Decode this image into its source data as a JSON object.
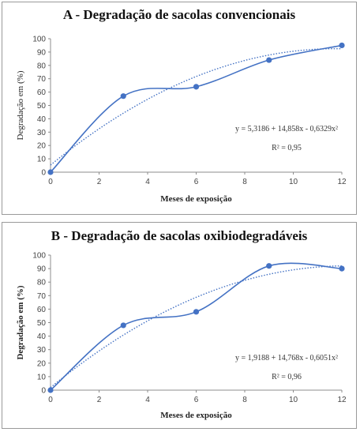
{
  "colors": {
    "series": "#4472c4",
    "grid": "#d9d9d9",
    "axis": "#8c8c8c"
  },
  "chart_data": [
    {
      "type": "line",
      "title": "A - Degradação de sacolas convencionais",
      "xlabel": "Meses de exposição",
      "ylabel": "Degradação em (%)",
      "xlim": [
        0,
        12
      ],
      "ylim": [
        0,
        100
      ],
      "xticks": [
        "0",
        "2",
        "4",
        "6",
        "8",
        "10",
        "12"
      ],
      "yticks": [
        "0",
        "10",
        "20",
        "30",
        "40",
        "50",
        "60",
        "70",
        "80",
        "90",
        "100"
      ],
      "grid": false,
      "series": [
        {
          "x": [
            0,
            3,
            6,
            9,
            12
          ],
          "y": [
            0,
            57,
            64,
            84,
            95
          ],
          "style": "smooth line with markers"
        }
      ],
      "trendline": {
        "type": "polynomial",
        "a": 5.3186,
        "b": 14.858,
        "c": -0.6329
      },
      "equation": "y = 5,3186 + 14,858x - 0,6329x²",
      "r2": "R² = 0,95"
    },
    {
      "type": "line",
      "title": "B - Degradação de sacolas oxibiodegradáveis",
      "xlabel": "Meses de exposição",
      "ylabel": "Degradação em (%)",
      "xlim": [
        0,
        12
      ],
      "ylim": [
        0,
        100
      ],
      "xticks": [
        "0",
        "2",
        "4",
        "6",
        "8",
        "10",
        "12"
      ],
      "yticks": [
        "0",
        "10",
        "20",
        "30",
        "40",
        "50",
        "60",
        "70",
        "80",
        "90",
        "100"
      ],
      "grid": false,
      "series": [
        {
          "x": [
            0,
            3,
            6,
            9,
            12
          ],
          "y": [
            0,
            48,
            58,
            92,
            90
          ],
          "style": "smooth line with markers"
        }
      ],
      "trendline": {
        "type": "polynomial",
        "a": 1.9188,
        "b": 14.768,
        "c": -0.6051
      },
      "equation": "y = 1,9188 + 14,768x - 0,6051x²",
      "r2": "R² = 0,96"
    }
  ]
}
